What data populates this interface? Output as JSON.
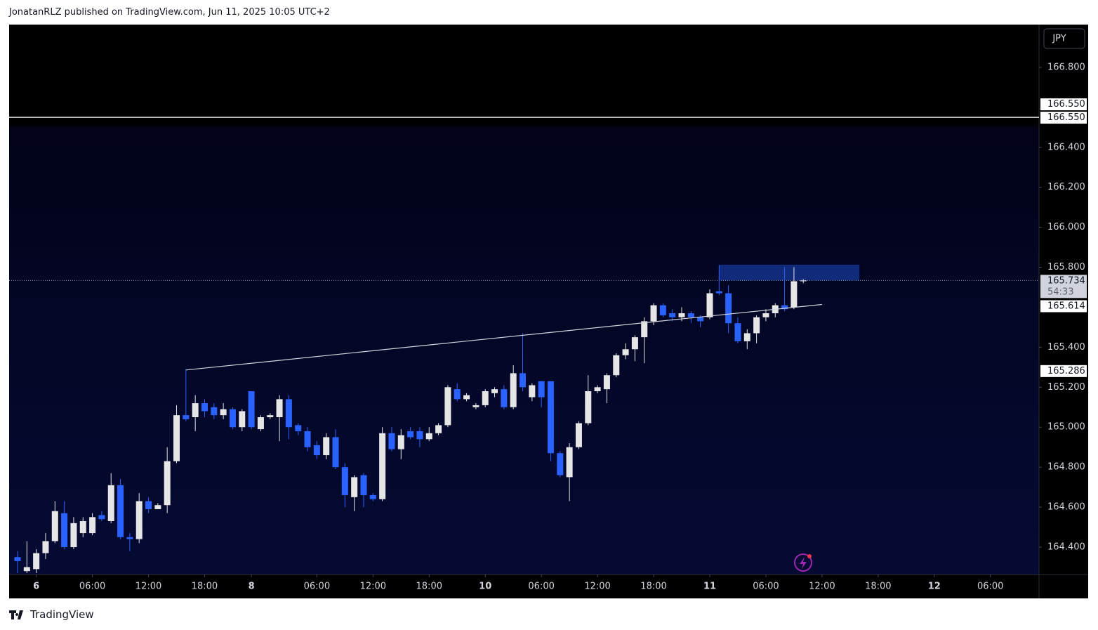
{
  "header": {
    "text": "JonatanRLZ published on TradingView.com, Jun 11, 2025 10:05 UTC+2"
  },
  "footer": {
    "logo": "TradingView"
  },
  "chart_data": {
    "type": "candlestick",
    "currency": "JPY",
    "up_color": "#e6e6e6",
    "down_color": "#2962ff",
    "x": [
      0,
      1,
      2,
      3,
      4,
      5,
      6,
      7,
      8,
      9,
      10,
      11,
      12,
      13,
      14,
      15,
      16,
      17,
      18,
      19,
      20,
      21,
      22,
      23,
      24,
      25,
      26,
      27,
      28,
      29,
      30,
      31,
      32,
      33,
      34,
      35,
      36,
      37,
      38,
      39,
      40,
      41,
      42,
      43,
      44,
      45,
      46,
      47,
      48,
      49,
      50,
      51,
      52,
      53,
      54,
      55,
      56,
      57,
      58,
      59,
      60,
      61,
      62,
      63,
      64,
      65,
      66,
      67,
      68,
      69,
      70,
      71,
      72,
      73,
      74,
      75,
      76,
      77,
      78,
      79,
      80,
      81,
      82,
      83,
      84
    ],
    "open": [
      164.35,
      164.28,
      164.29,
      164.37,
      164.43,
      164.57,
      164.4,
      164.47,
      164.47,
      164.56,
      164.53,
      164.71,
      164.45,
      164.44,
      164.63,
      164.59,
      164.61,
      164.83,
      165.06,
      165.05,
      165.12,
      165.1,
      165.06,
      165.09,
      165.0,
      165.18,
      164.99,
      165.05,
      165.05,
      165.14,
      165.01,
      164.98,
      164.91,
      164.86,
      164.95,
      164.8,
      164.65,
      164.76,
      164.66,
      164.64,
      164.97,
      164.89,
      164.98,
      164.98,
      164.94,
      164.97,
      165.01,
      165.19,
      165.14,
      165.1,
      165.11,
      165.17,
      165.19,
      165.1,
      165.27,
      165.15,
      165.23,
      165.23,
      164.87,
      164.75,
      164.9,
      165.02,
      165.18,
      165.19,
      165.26,
      165.36,
      165.39,
      165.45,
      165.53,
      165.61,
      165.57,
      165.55,
      165.57,
      165.55,
      165.55,
      165.68,
      165.67,
      165.52,
      165.43,
      165.47,
      165.55,
      165.57,
      165.61,
      165.6,
      165.73
    ],
    "high": [
      164.38,
      164.43,
      164.39,
      164.47,
      164.63,
      164.63,
      164.55,
      164.55,
      164.57,
      164.58,
      164.77,
      164.74,
      164.47,
      164.67,
      164.65,
      164.62,
      164.9,
      165.11,
      165.29,
      165.16,
      165.14,
      165.12,
      165.12,
      165.1,
      165.09,
      165.18,
      165.06,
      165.07,
      165.16,
      165.16,
      165.02,
      165.0,
      164.93,
      164.97,
      164.99,
      164.82,
      164.76,
      164.77,
      164.67,
      165.0,
      165.0,
      164.99,
      165.0,
      165.0,
      165.0,
      165.02,
      165.21,
      165.22,
      165.17,
      165.12,
      165.19,
      165.2,
      165.21,
      165.31,
      165.47,
      165.22,
      165.23,
      165.23,
      164.88,
      164.92,
      165.03,
      165.26,
      165.21,
      165.27,
      165.37,
      165.42,
      165.46,
      165.55,
      165.62,
      165.62,
      165.59,
      165.6,
      165.58,
      165.56,
      165.69,
      165.81,
      165.71,
      165.55,
      165.49,
      165.56,
      165.59,
      165.62,
      165.8,
      165.8,
      165.74
    ],
    "low": [
      164.27,
      164.27,
      164.27,
      164.34,
      164.42,
      164.39,
      164.39,
      164.45,
      164.46,
      164.53,
      164.52,
      164.44,
      164.38,
      164.42,
      164.57,
      164.59,
      164.57,
      164.82,
      165.03,
      164.98,
      165.05,
      165.04,
      165.04,
      164.99,
      164.98,
      164.99,
      164.98,
      165.04,
      164.93,
      164.94,
      164.96,
      164.88,
      164.84,
      164.84,
      164.79,
      164.6,
      164.58,
      164.6,
      164.63,
      164.63,
      164.88,
      164.84,
      164.94,
      164.9,
      164.93,
      164.96,
      165.0,
      165.13,
      165.13,
      165.09,
      165.1,
      165.15,
      165.09,
      165.09,
      165.18,
      165.13,
      165.1,
      164.83,
      164.75,
      164.63,
      164.89,
      165.01,
      165.17,
      165.12,
      165.25,
      165.34,
      165.33,
      165.32,
      165.51,
      165.55,
      165.53,
      165.53,
      165.52,
      165.5,
      165.54,
      165.66,
      165.47,
      165.42,
      165.39,
      165.42,
      165.53,
      165.55,
      165.58,
      165.59,
      165.72
    ],
    "close": [
      164.33,
      164.3,
      164.37,
      164.43,
      164.58,
      164.4,
      164.52,
      164.53,
      164.55,
      164.54,
      164.71,
      164.45,
      164.44,
      164.63,
      164.59,
      164.61,
      164.83,
      165.06,
      165.04,
      165.12,
      165.08,
      165.06,
      165.09,
      165.0,
      165.08,
      165.0,
      165.05,
      165.06,
      165.14,
      165.0,
      164.98,
      164.9,
      164.86,
      164.95,
      164.8,
      164.66,
      164.75,
      164.66,
      164.64,
      164.97,
      164.89,
      164.96,
      164.95,
      164.94,
      164.97,
      165.01,
      165.2,
      165.14,
      165.16,
      165.11,
      165.18,
      165.19,
      165.1,
      165.27,
      165.2,
      165.21,
      165.15,
      164.87,
      164.76,
      164.9,
      165.02,
      165.18,
      165.2,
      165.26,
      165.36,
      165.39,
      165.45,
      165.53,
      165.61,
      165.56,
      165.55,
      165.57,
      165.55,
      165.53,
      165.67,
      165.67,
      165.52,
      165.43,
      165.47,
      165.55,
      165.57,
      165.61,
      165.59,
      165.73,
      165.734
    ],
    "xlim": [
      -0.9,
      109.2
    ],
    "xticks": [
      {
        "value": 2,
        "label": "6"
      },
      {
        "value": 8,
        "label": "06:00"
      },
      {
        "value": 14,
        "label": "12:00"
      },
      {
        "value": 20,
        "label": "18:00"
      },
      {
        "value": 25,
        "label": "8"
      },
      {
        "value": 32,
        "label": "06:00"
      },
      {
        "value": 38,
        "label": "12:00"
      },
      {
        "value": 44,
        "label": "18:00"
      },
      {
        "value": 50,
        "label": "10"
      },
      {
        "value": 56,
        "label": "06:00"
      },
      {
        "value": 62,
        "label": "12:00"
      },
      {
        "value": 68,
        "label": "18:00"
      },
      {
        "value": 74,
        "label": "11"
      },
      {
        "value": 80,
        "label": "06:00"
      },
      {
        "value": 86,
        "label": "12:00"
      },
      {
        "value": 92,
        "label": "18:00"
      },
      {
        "value": 98,
        "label": "12"
      },
      {
        "value": 104,
        "label": "06:00"
      }
    ],
    "ylim": [
      164.263,
      167.014
    ],
    "yticks": [
      {
        "value": 166.8,
        "label": "166.800"
      },
      {
        "value": 166.4,
        "label": "166.400"
      },
      {
        "value": 166.2,
        "label": "166.200"
      },
      {
        "value": 166.0,
        "label": "166.000"
      },
      {
        "value": 165.8,
        "label": "165.800"
      },
      {
        "value": 165.4,
        "label": "165.400"
      },
      {
        "value": 165.2,
        "label": "165.200"
      },
      {
        "value": 165.0,
        "label": "165.000"
      },
      {
        "value": 164.8,
        "label": "164.800"
      },
      {
        "value": 164.6,
        "label": "164.600"
      },
      {
        "value": 164.4,
        "label": "164.400"
      }
    ],
    "levels": [
      {
        "value": 166.55,
        "label": "166.550"
      },
      {
        "value": 166.55,
        "label": "166.550"
      }
    ],
    "last_price": {
      "value": 165.734,
      "label": "165.734",
      "countdown": "54:33"
    },
    "trendline": {
      "x": [
        18,
        86
      ],
      "y": [
        165.286,
        165.614
      ],
      "labels": [
        "165.286",
        "165.614"
      ]
    },
    "zone": {
      "x": [
        75,
        90
      ],
      "y": [
        165.734,
        165.813
      ]
    }
  }
}
